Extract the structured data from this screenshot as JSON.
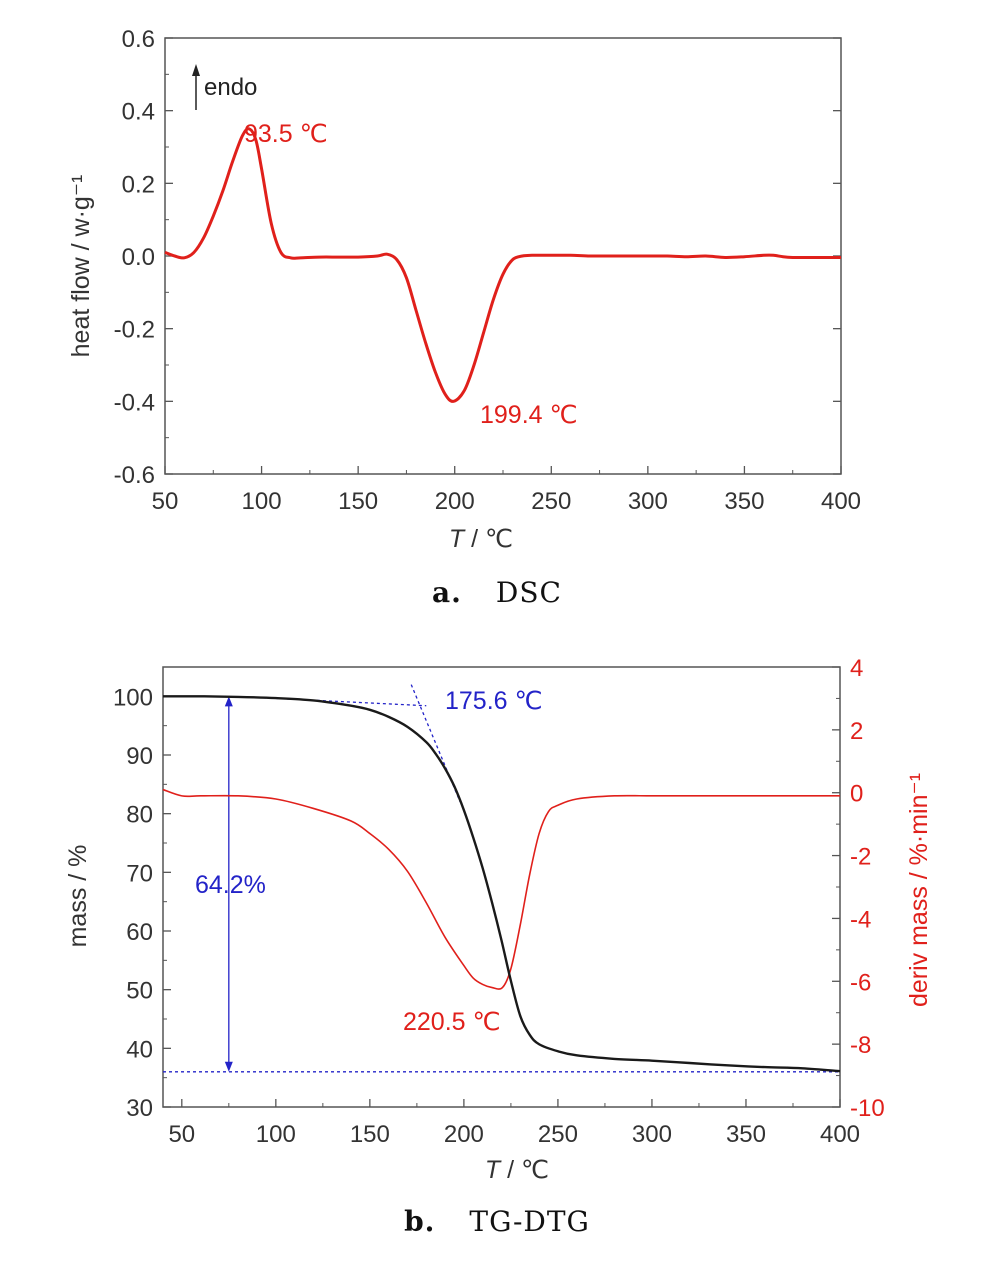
{
  "colors": {
    "dsc_curve": "#e0201b",
    "tg_curve": "#1a1a1a",
    "dtg_curve": "#e0201b",
    "annotation_blue": "#2323c8",
    "axis": "#555555"
  },
  "chart_data": [
    {
      "id": "dsc",
      "type": "line",
      "caption_letter": "a.",
      "caption_text": "DSC",
      "xlabel_italic": "T",
      "xlabel_rest": " / ℃",
      "ylabel": "heat flow / w·g⁻¹",
      "xlim": [
        50,
        400
      ],
      "ylim": [
        -0.6,
        0.6
      ],
      "xticks": [
        50,
        100,
        150,
        200,
        250,
        300,
        350,
        400
      ],
      "yticks": [
        0.6,
        0.4,
        0.2,
        0.0,
        -0.2,
        -0.4,
        -0.6
      ],
      "ytick_labels": [
        "0.6",
        "0.4",
        "0.2",
        "0.0",
        "-0.2",
        "-0.4",
        "-0.6"
      ],
      "grid": false,
      "series": [
        {
          "x": [
            50,
            55,
            60,
            65,
            70,
            75,
            80,
            85,
            90,
            93.5,
            97,
            100,
            105,
            110,
            115,
            120,
            130,
            140,
            150,
            160,
            165,
            170,
            175,
            180,
            185,
            190,
            195,
            199.4,
            205,
            210,
            215,
            220,
            225,
            230,
            235,
            240,
            250,
            260,
            270,
            280,
            290,
            300,
            310,
            320,
            330,
            340,
            350,
            360,
            365,
            370,
            375,
            380,
            390,
            400
          ],
          "y": [
            0.01,
            0.0,
            -0.005,
            0.01,
            0.05,
            0.11,
            0.18,
            0.26,
            0.33,
            0.35,
            0.32,
            0.24,
            0.09,
            0.01,
            -0.005,
            -0.005,
            -0.003,
            -0.003,
            -0.003,
            0.0,
            0.005,
            -0.01,
            -0.06,
            -0.15,
            -0.24,
            -0.32,
            -0.38,
            -0.4,
            -0.37,
            -0.3,
            -0.21,
            -0.12,
            -0.05,
            -0.01,
            0.0,
            0.002,
            0.002,
            0.002,
            0.0,
            0.0,
            0.0,
            0.0,
            0.0,
            -0.002,
            0.0,
            -0.004,
            -0.002,
            0.002,
            0.002,
            -0.002,
            -0.004,
            -0.004,
            -0.004,
            -0.004
          ]
        }
      ],
      "annotations": {
        "endo": "endo",
        "peak1": "93.5 ℃",
        "peak2": "199.4 ℃"
      }
    },
    {
      "id": "tg-dtg",
      "type": "line",
      "caption_letter": "b.",
      "caption_text": "TG-DTG",
      "xlabel_italic": "T",
      "xlabel_rest": " / ℃",
      "ylabel": "mass / %",
      "y2label": "deriv mass / %·min⁻¹",
      "xlim": [
        40,
        400
      ],
      "ylim": [
        30,
        105
      ],
      "y2lim": [
        -10,
        4
      ],
      "xticks": [
        50,
        100,
        150,
        200,
        250,
        300,
        350,
        400
      ],
      "yticks": [
        30,
        40,
        50,
        60,
        70,
        80,
        90,
        100
      ],
      "y2ticks": [
        4,
        2,
        0,
        -2,
        -4,
        -6,
        -8,
        -10
      ],
      "grid": false,
      "series": [
        {
          "name": "mass",
          "axis": "left",
          "x": [
            40,
            60,
            80,
            100,
            120,
            140,
            150,
            160,
            170,
            180,
            185,
            190,
            195,
            200,
            205,
            210,
            215,
            220,
            225,
            230,
            235,
            240,
            250,
            260,
            280,
            300,
            320,
            340,
            360,
            380,
            400
          ],
          "y": [
            100.0,
            100.0,
            99.9,
            99.7,
            99.3,
            98.4,
            97.7,
            96.5,
            94.8,
            92.2,
            90.2,
            87.7,
            84.6,
            80.6,
            75.9,
            70.7,
            64.8,
            58.4,
            51.5,
            45.5,
            42.3,
            40.7,
            39.5,
            38.8,
            38.2,
            37.9,
            37.5,
            37.1,
            36.8,
            36.6,
            36.1
          ]
        },
        {
          "name": "deriv mass",
          "axis": "right",
          "x": [
            40,
            50,
            60,
            80,
            100,
            120,
            140,
            150,
            160,
            170,
            180,
            190,
            200,
            205,
            210,
            215,
            220.5,
            225,
            230,
            235,
            240,
            245,
            250,
            260,
            280,
            300,
            320,
            340,
            360,
            380,
            400
          ],
          "y": [
            0.1,
            -0.1,
            -0.1,
            -0.1,
            -0.2,
            -0.5,
            -0.9,
            -1.3,
            -1.8,
            -2.5,
            -3.5,
            -4.6,
            -5.5,
            -5.9,
            -6.1,
            -6.2,
            -6.2,
            -5.6,
            -4.2,
            -2.6,
            -1.3,
            -0.6,
            -0.4,
            -0.2,
            -0.1,
            -0.1,
            -0.1,
            -0.1,
            -0.1,
            -0.1,
            -0.1
          ]
        }
      ],
      "annotations": {
        "onset": "175.6 ℃",
        "mass_loss": "64.2%",
        "dtg_peak": "220.5 ℃",
        "mass_loss_end": 36.0,
        "onset_tangent_flat": [
          [
            90,
            99.8
          ],
          [
            180,
            98.4
          ]
        ],
        "onset_tangent_steep": [
          [
            172,
            102
          ],
          [
            198,
            82
          ]
        ]
      }
    }
  ]
}
